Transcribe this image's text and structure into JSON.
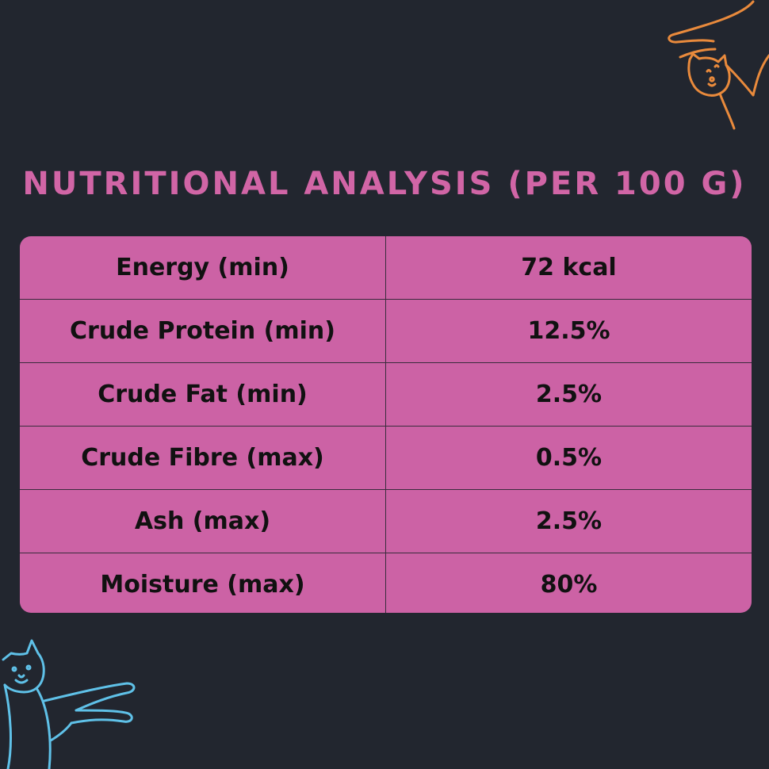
{
  "colors": {
    "background": "#22262f",
    "title": "#d165a6",
    "table_fill": "#cc62a5",
    "grid_line": "#3a2c3c",
    "doodle_orange": "#e98a3c",
    "doodle_blue": "#5fc1e8"
  },
  "title": "Nutritional Analysis (per 100 g)",
  "nutrition": {
    "rows": [
      {
        "label": "Energy (min)",
        "value": "72 kcal"
      },
      {
        "label": "Crude Protein (min)",
        "value": "12.5%"
      },
      {
        "label": "Crude Fat (min)",
        "value": "2.5%"
      },
      {
        "label": "Crude Fibre (max)",
        "value": "0.5%"
      },
      {
        "label": "Ash (max)",
        "value": "2.5%"
      },
      {
        "label": "Moisture (max)",
        "value": "80%"
      }
    ]
  },
  "decorations": {
    "top_right": "orange-cat-doodle-icon",
    "bottom_left": "blue-cat-doodle-icon"
  }
}
